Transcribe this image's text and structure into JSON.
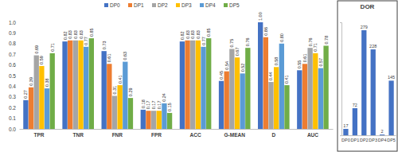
{
  "chart_data": [
    {
      "type": "bar",
      "categories": [
        "TPR",
        "TNR",
        "FNR",
        "FPR",
        "ACC",
        "G-MEAN",
        "D",
        "AUC"
      ],
      "series": [
        {
          "name": "DP0",
          "color": "#4472c4",
          "values": [
            0.27,
            0.82,
            0.73,
            0.18,
            0.82,
            0.45,
            1.0,
            0.55
          ],
          "value_labels": [
            "0.27",
            "0.82",
            "0.73",
            "0.18",
            "0.82",
            "0.45",
            "1.00",
            "0.55"
          ]
        },
        {
          "name": "DP1",
          "color": "#ed7d31",
          "values": [
            0.39,
            0.83,
            0.61,
            0.17,
            0.83,
            0.54,
            0.86,
            0.61
          ],
          "value_labels": [
            "0.39",
            "0.83",
            "0.61",
            "0.17",
            "0.83",
            "0.54",
            "0.86",
            "0.61"
          ]
        },
        {
          "name": "DP2",
          "color": "#a5a5a5",
          "values": [
            0.69,
            0.83,
            0.31,
            0.17,
            0.83,
            0.75,
            0.44,
            0.76
          ],
          "value_labels": [
            "0.69",
            "0.83",
            "0.31",
            "0.17",
            "0.83",
            "0.75",
            "0.44",
            "0.76"
          ]
        },
        {
          "name": "DP3",
          "color": "#ffc000",
          "values": [
            0.59,
            0.83,
            0.41,
            0.17,
            0.83,
            0.67,
            0.58,
            0.71
          ],
          "value_labels": [
            "0.59",
            "0.83",
            "0.41",
            "0.17",
            "0.83",
            "0.67",
            "0.58",
            "0.71"
          ]
        },
        {
          "name": "DP4",
          "color": "#5b9bd5",
          "values": [
            0.38,
            0.77,
            0.63,
            0.24,
            0.77,
            0.52,
            0.8,
            0.57
          ],
          "value_labels": [
            "0.38",
            "0.77",
            "0.63",
            "0.24",
            "0.77",
            "0.52",
            "0.80",
            "0.57"
          ]
        },
        {
          "name": "DP5",
          "color": "#70ad47",
          "values": [
            0.71,
            0.85,
            0.29,
            0.15,
            0.85,
            0.76,
            0.41,
            0.78
          ],
          "value_labels": [
            "0.71",
            "0.85",
            "0.29",
            "0.15",
            "0.85",
            "0.76",
            "0.41",
            "0.78"
          ]
        }
      ],
      "ylim": [
        0,
        1
      ],
      "yticks": [
        {
          "value": 0,
          "label": "0.0"
        },
        {
          "value": 0.1,
          "label": "0.1"
        },
        {
          "value": 0.2,
          "label": "0.2"
        },
        {
          "value": 0.3,
          "label": "0.3"
        },
        {
          "value": 0.4,
          "label": "0.4"
        },
        {
          "value": 0.5,
          "label": "0.5"
        },
        {
          "value": 0.6,
          "label": "0.6"
        },
        {
          "value": 0.7,
          "label": "0.7"
        },
        {
          "value": 0.8,
          "label": "0.8"
        },
        {
          "value": 0.9,
          "label": "0.9"
        },
        {
          "value": 1,
          "label": "1.0"
        }
      ],
      "grid": false,
      "legend": "top",
      "data_labels": true
    },
    {
      "type": "bar",
      "title": "DOR",
      "categories": [
        "DP0",
        "DP1",
        "DP2",
        "DP3",
        "DP4",
        "DP5"
      ],
      "values": [
        17,
        72,
        279,
        228,
        2,
        145
      ],
      "color": "#4472c4",
      "ylim": [
        0,
        300
      ],
      "data_labels": true,
      "tick_labels": "x"
    }
  ]
}
